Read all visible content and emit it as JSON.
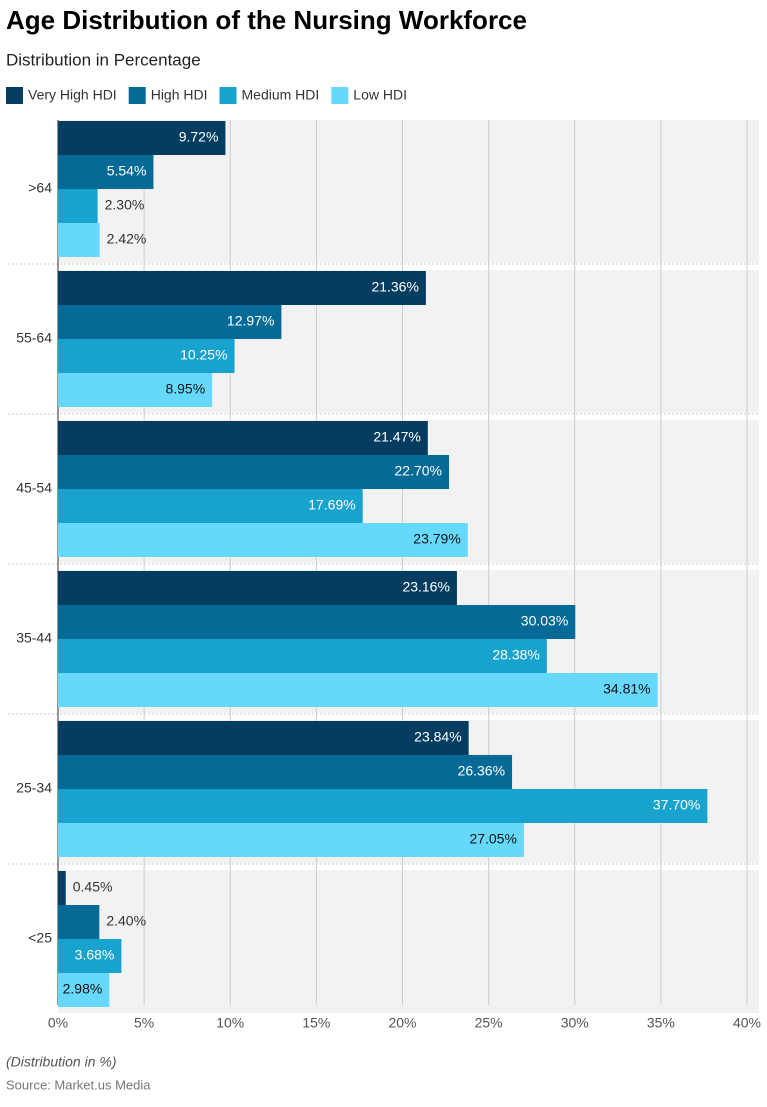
{
  "chart_data": {
    "type": "hbar",
    "title": "Age Distribution of the Nursing Workforce",
    "subtitle": "Distribution in Percentage",
    "note": "(Distribution in %)",
    "source": "Source: Market.us Media",
    "categories": [
      ">64",
      "55-64",
      "45-54",
      "35-44",
      "25-34",
      "<25"
    ],
    "series": [
      {
        "name": "Very High HDI",
        "color": "#053d60",
        "values": [
          9.72,
          21.36,
          21.47,
          23.16,
          23.84,
          0.45
        ],
        "value_labels": [
          "9.72%",
          "21.36%",
          "21.47%",
          "23.16%",
          "23.84%",
          "0.45%"
        ]
      },
      {
        "name": "High HDI",
        "color": "#066a96",
        "values": [
          5.54,
          12.97,
          22.7,
          30.03,
          26.36,
          2.4
        ],
        "value_labels": [
          "5.54%",
          "12.97%",
          "22.70%",
          "30.03%",
          "26.36%",
          "2.40%"
        ]
      },
      {
        "name": "Medium HDI",
        "color": "#18a3cf",
        "values": [
          2.3,
          10.25,
          17.69,
          28.38,
          37.7,
          3.68
        ],
        "value_labels": [
          "2.30%",
          "10.25%",
          "17.69%",
          "28.38%",
          "37.70%",
          "3.68%"
        ]
      },
      {
        "name": "Low HDI",
        "color": "#66d8fc",
        "values": [
          2.42,
          8.95,
          23.79,
          34.81,
          27.05,
          2.98
        ],
        "value_labels": [
          "2.42%",
          "8.95%",
          "23.79%",
          "34.81%",
          "27.05%",
          "2.98%"
        ]
      }
    ],
    "xlim": [
      0,
      40
    ],
    "xticks": [
      {
        "value": 0,
        "label": "0%"
      },
      {
        "value": 5,
        "label": "5%"
      },
      {
        "value": 10,
        "label": "10%"
      },
      {
        "value": 15,
        "label": "15%"
      },
      {
        "value": 20,
        "label": "20%"
      },
      {
        "value": 25,
        "label": "25%"
      },
      {
        "value": 30,
        "label": "30%"
      },
      {
        "value": 35,
        "label": "35%"
      },
      {
        "value": 40,
        "label": "40%"
      }
    ],
    "grid": true
  }
}
